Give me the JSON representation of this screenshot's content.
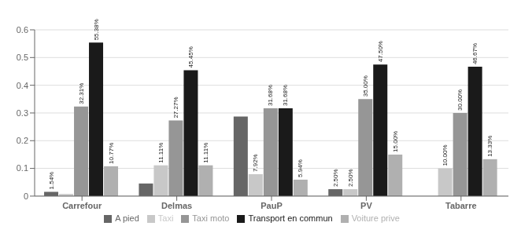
{
  "chart_data": {
    "type": "bar",
    "categories": [
      "Carrefour",
      "Delmas",
      "PauP",
      "PV",
      "Tabarre"
    ],
    "series": [
      {
        "name": "A pied",
        "color": "#666666",
        "values": [
          0.0154,
          0.0455,
          0.2871,
          0.025,
          0.0
        ],
        "value_labels": [
          "1.54%",
          null,
          null,
          "2.50%",
          null
        ]
      },
      {
        "name": "Taxi",
        "color": "#c8c8c8",
        "values": [
          0.0077,
          0.1111,
          0.0792,
          0.025,
          0.1
        ],
        "value_labels": [
          null,
          "11.11%",
          "7.92%",
          "2.50%",
          "10.00%"
        ]
      },
      {
        "name": "Taxi moto",
        "color": "#969696",
        "values": [
          0.3231,
          0.2727,
          0.3168,
          0.35,
          0.3
        ],
        "value_labels": [
          "32.31%",
          "27.27%",
          "31.68%",
          "35.00%",
          "30.00%"
        ]
      },
      {
        "name": "Transport en commun",
        "color": "#1a1a1a",
        "values": [
          0.5538,
          0.4545,
          0.3168,
          0.475,
          0.4667
        ],
        "value_labels": [
          "55.38%",
          "45.45%",
          "31.68%",
          "47.50%",
          "46.67%"
        ]
      },
      {
        "name": "Voiture prive",
        "color": "#b0b0b0",
        "values": [
          0.1077,
          0.1111,
          0.0594,
          0.15,
          0.1333
        ],
        "value_labels": [
          "10.77%",
          "11.11%",
          "5.94%",
          "15.00%",
          "13.33%"
        ]
      }
    ],
    "ylim": [
      0,
      0.6
    ],
    "yticks": [
      0,
      0.1,
      0.2,
      0.3,
      0.4,
      0.5,
      0.6
    ],
    "grid": true,
    "legend": "bottom"
  }
}
